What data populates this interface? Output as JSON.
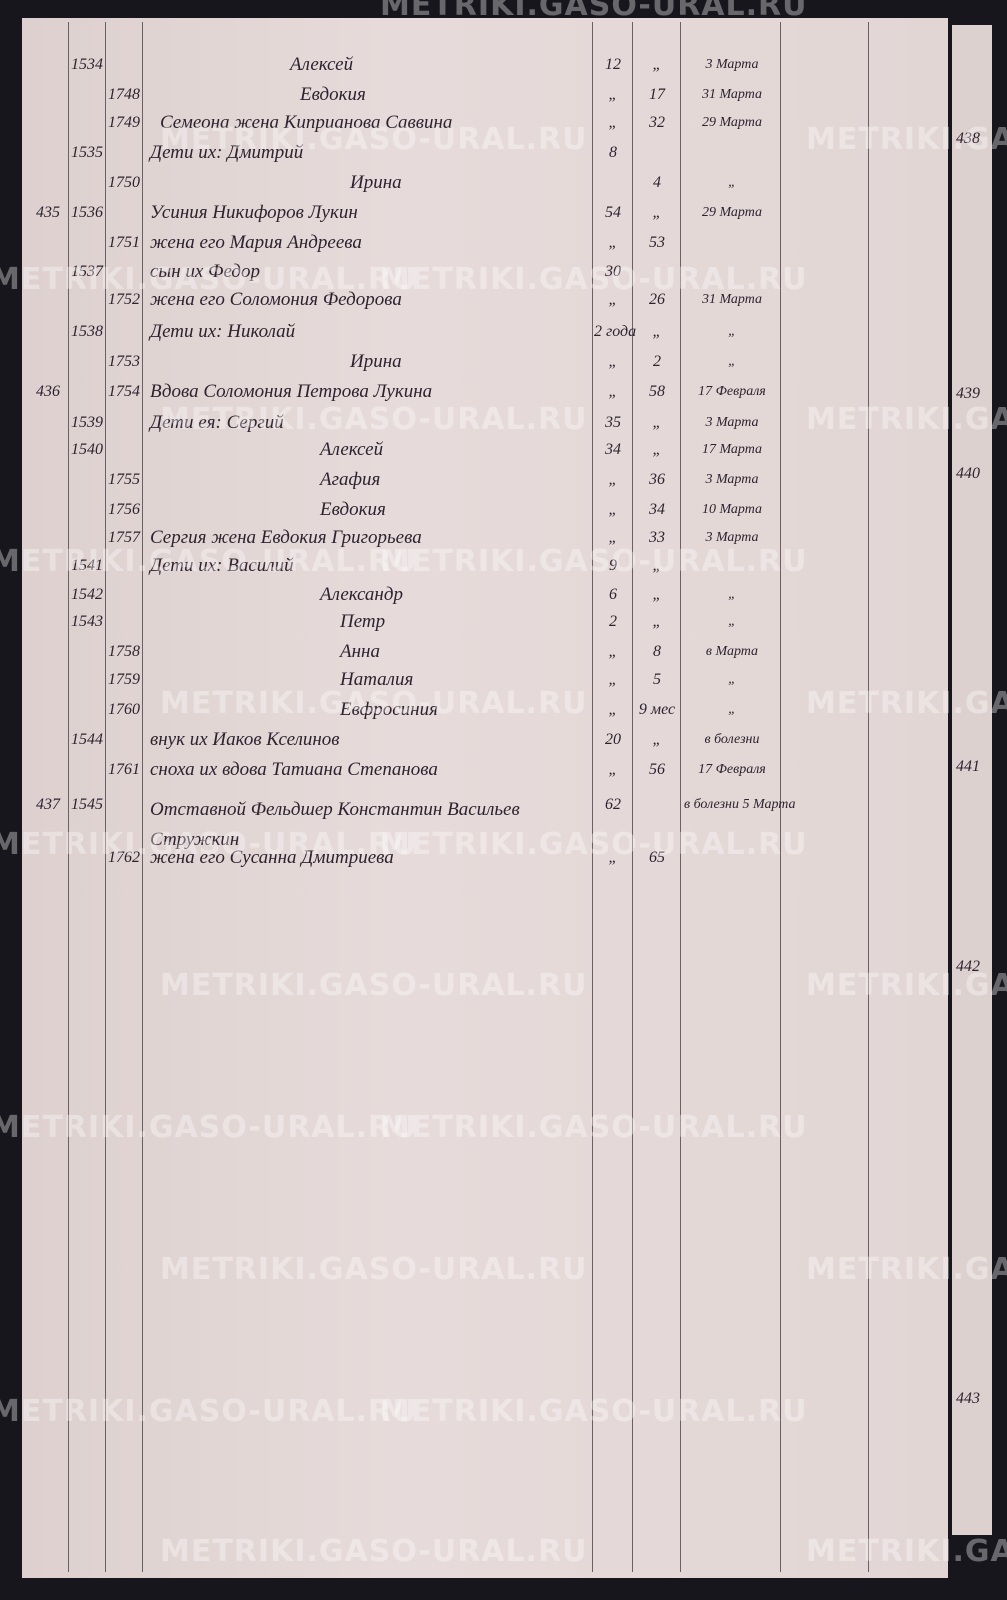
{
  "watermark": "METRIKI.GASO-URAL.RU",
  "side_numbers": [
    "438",
    "439",
    "440",
    "441",
    "442",
    "443"
  ],
  "rows": [
    {
      "outer": "",
      "male_no": "1534",
      "name": "Алексей",
      "male_age": "12",
      "female_age": "„",
      "date": "3 Марта"
    },
    {
      "female_no": "1748",
      "name": "Евдокия",
      "male_age": "„",
      "female_age": "17",
      "date": "31 Марта"
    },
    {
      "female_no": "1749",
      "name": "Семеона жена Киприанова Саввина",
      "male_age": "„",
      "female_age": "32",
      "date": "29 Марта"
    },
    {
      "male_no": "1535",
      "name": "Дети их: Дмитрий",
      "male_age": "8"
    },
    {
      "female_no": "1750",
      "name": "Ирина",
      "female_age": "4",
      "date": "„"
    },
    {
      "outer": "435",
      "male_no": "1536",
      "name": "Усиния Никифоров Лукин",
      "male_age": "54",
      "female_age": "„",
      "date": "29 Марта"
    },
    {
      "female_no": "1751",
      "name": "жена его Мария Андреева",
      "male_age": "„",
      "female_age": "53"
    },
    {
      "male_no": "1537",
      "name": "сын их Федор",
      "male_age": "30"
    },
    {
      "female_no": "1752",
      "name": "жена его Соломония Федорова",
      "male_age": "„",
      "female_age": "26",
      "date": "31 Марта"
    },
    {
      "male_no": "1538",
      "name": "Дети их: Николай",
      "male_age": "2 года",
      "female_age": "„",
      "date": "„"
    },
    {
      "female_no": "1753",
      "name": "Ирина",
      "male_age": "„",
      "female_age": "2",
      "date": "„"
    },
    {
      "outer": "436",
      "female_no": "1754",
      "name": "Вдова Соломония Петрова Лукина",
      "male_age": "„",
      "female_age": "58",
      "date": "17 Февраля"
    },
    {
      "male_no": "1539",
      "name": "Дети ея: Сергий",
      "male_age": "35",
      "female_age": "„",
      "date": "3 Марта"
    },
    {
      "male_no": "1540",
      "name": "Алексей",
      "male_age": "34",
      "female_age": "„",
      "date": "17 Марта"
    },
    {
      "female_no": "1755",
      "name": "Агафия",
      "male_age": "„",
      "female_age": "36",
      "date": "3 Марта"
    },
    {
      "female_no": "1756",
      "name": "Евдокия",
      "male_age": "„",
      "female_age": "34",
      "date": "10 Марта"
    },
    {
      "female_no": "1757",
      "name": "Сергия жена Евдокия Григорьева",
      "male_age": "„",
      "female_age": "33",
      "date": "3 Марта"
    },
    {
      "male_no": "1541",
      "name": "Дети их: Василий",
      "male_age": "9",
      "female_age": "„"
    },
    {
      "male_no": "1542",
      "name": "Александр",
      "male_age": "6",
      "female_age": "„",
      "date": "„"
    },
    {
      "male_no": "1543",
      "name": "Петр",
      "male_age": "2",
      "female_age": "„",
      "date": "„"
    },
    {
      "female_no": "1758",
      "name": "Анна",
      "male_age": "„",
      "female_age": "8",
      "date": "в Марта"
    },
    {
      "female_no": "1759",
      "name": "Наталия",
      "male_age": "„",
      "female_age": "5",
      "date": "„"
    },
    {
      "female_no": "1760",
      "name": "Евфросиния",
      "male_age": "„",
      "female_age": "9 мес",
      "date": "„"
    },
    {
      "male_no": "1544",
      "name": "внук их Иаков Кселинов",
      "male_age": "20",
      "female_age": "„",
      "date": "в болезни"
    },
    {
      "female_no": "1761",
      "name": "сноха их вдова Татиана Степанова",
      "male_age": "„",
      "female_age": "56",
      "date": "17 Февраля"
    },
    {
      "outer": "437",
      "male_no": "1545",
      "name": "Отставной Фельдшер Константин Васильев Стружкин",
      "male_age": "62",
      "date": "в болезни 5 Марта"
    },
    {
      "female_no": "1762",
      "name": "жена его Сусанна Дмитриева",
      "male_age": "„",
      "female_age": "65"
    }
  ]
}
